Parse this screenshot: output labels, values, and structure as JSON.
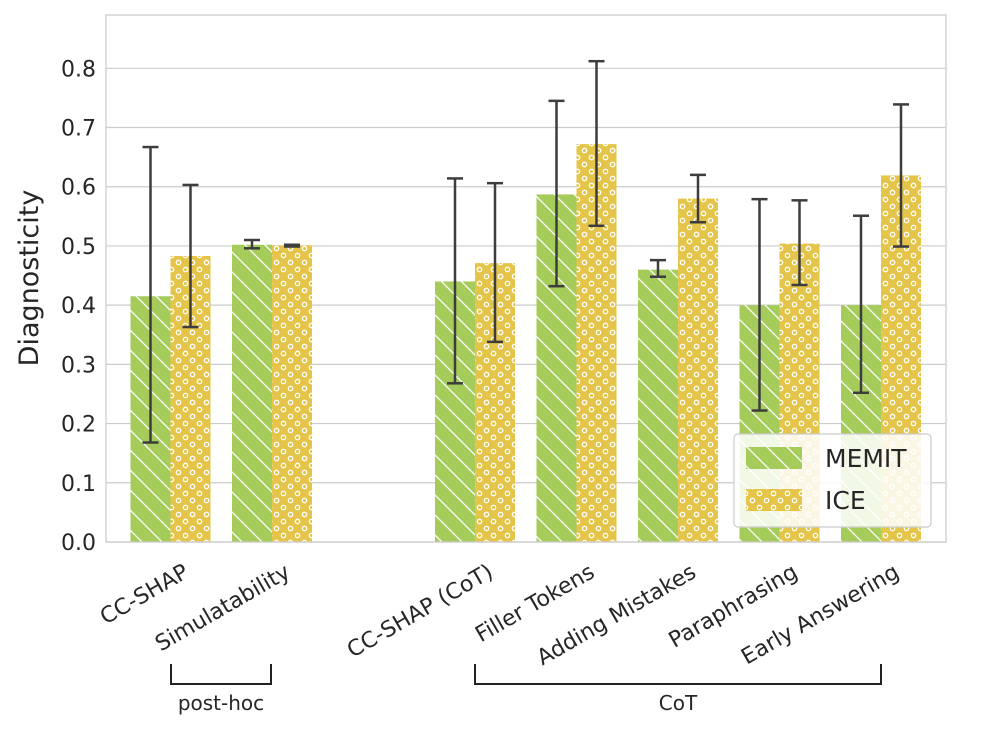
{
  "chart_data": {
    "type": "bar",
    "ylabel": "Diagnosticity",
    "xlabel": "",
    "ylim": [
      0,
      0.89
    ],
    "yticks": [
      "0.0",
      "0.1",
      "0.2",
      "0.3",
      "0.4",
      "0.5",
      "0.6",
      "0.7",
      "0.8"
    ],
    "grid": true,
    "categories": [
      "CC-SHAP",
      "Simulatability",
      "",
      "CC-SHAP (CoT)",
      "Filler Tokens",
      "Adding Mistakes",
      "Paraphrasing",
      "Early Answering"
    ],
    "series": [
      {
        "name": "MEMIT",
        "color": "#a5cc5a",
        "hatch": "diagonal",
        "values": [
          0.415,
          0.502,
          null,
          0.44,
          0.587,
          0.46,
          0.4,
          0.4
        ],
        "err_low": [
          0.168,
          0.496,
          null,
          0.268,
          0.432,
          0.448,
          0.222,
          0.252
        ],
        "err_high": [
          0.667,
          0.51,
          null,
          0.614,
          0.745,
          0.476,
          0.579,
          0.551
        ]
      },
      {
        "name": "ICE",
        "color": "#e5c44a",
        "hatch": "circles",
        "values": [
          0.483,
          0.501,
          null,
          0.471,
          0.672,
          0.58,
          0.504,
          0.619
        ],
        "err_low": [
          0.363,
          0.499,
          null,
          0.338,
          0.534,
          0.54,
          0.434,
          0.499
        ],
        "err_high": [
          0.603,
          0.502,
          null,
          0.606,
          0.812,
          0.62,
          0.577,
          0.739
        ]
      }
    ],
    "legend": {
      "position": "lower-right",
      "entries": [
        "MEMIT",
        "ICE"
      ]
    },
    "groups": [
      {
        "label": "post-hoc",
        "from": 0,
        "to": 1
      },
      {
        "label": "CoT",
        "from": 3,
        "to": 7
      }
    ]
  }
}
